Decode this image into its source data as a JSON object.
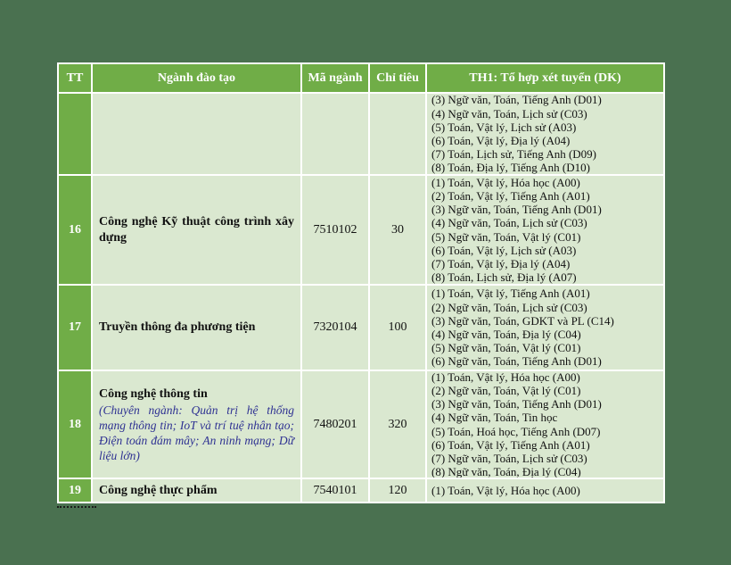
{
  "table": {
    "headers": {
      "tt": "TT",
      "major": "Ngành đào tạo",
      "code": "Mã ngành",
      "quota": "Chỉ tiêu",
      "combos": "TH1: Tổ hợp xét tuyển (DK)"
    },
    "rows": [
      {
        "tt": "",
        "name": "",
        "subtitle": "",
        "code": "",
        "quota": "",
        "combinations": [
          "(3) Ngữ văn, Toán, Tiếng Anh (D01)",
          "(4) Ngữ văn, Toán, Lịch sử (C03)",
          "(5) Toán, Vật lý, Lịch sử (A03)",
          "(6) Toán, Vật lý, Địa lý (A04)",
          "(7) Toán, Lịch sử, Tiếng Anh (D09)",
          "(8) Toán, Địa lý, Tiếng Anh (D10)"
        ]
      },
      {
        "tt": "16",
        "name": "Công nghệ Kỹ thuật công trình xây dựng",
        "subtitle": "",
        "code": "7510102",
        "quota": "30",
        "combinations": [
          "(1) Toán, Vật lý, Hóa học (A00)",
          "(2) Toán, Vật lý, Tiếng Anh (A01)",
          "(3) Ngữ văn, Toán, Tiếng Anh (D01)",
          "(4) Ngữ văn, Toán, Lịch sử (C03)",
          "(5) Ngữ văn, Toán, Vật lý (C01)",
          "(6) Toán, Vật lý, Lịch sử (A03)",
          "(7) Toán, Vật lý, Địa lý (A04)",
          "(8) Toán, Lịch sử, Địa lý (A07)"
        ]
      },
      {
        "tt": "17",
        "name": "Truyền thông đa phương tiện",
        "subtitle": "",
        "code": "7320104",
        "quota": "100",
        "combinations": [
          "(1) Toán, Vật lý, Tiếng Anh (A01)",
          "(2) Ngữ văn, Toán, Lịch sử (C03)",
          "(3) Ngữ văn, Toán, GDKT và PL (C14)",
          "(4) Ngữ văn, Toán, Địa lý (C04)",
          "(5) Ngữ văn, Toán, Vật lý (C01)",
          "(6) Ngữ văn, Toán, Tiếng Anh (D01)"
        ]
      },
      {
        "tt": "18",
        "name": "Công nghệ thông tin",
        "subtitle": "(Chuyên ngành: Quản trị hệ thống mạng thông tin; IoT và trí tuệ nhân tạo; Điện toán đám mây; An ninh mạng; Dữ liệu lớn)",
        "code": "7480201",
        "quota": "320",
        "combinations": [
          "(1) Toán, Vật lý, Hóa học (A00)",
          "(2) Ngữ văn, Toán, Vật lý (C01)",
          "(3) Ngữ văn, Toán, Tiếng Anh (D01)",
          "(4) Ngữ văn, Toán, Tin học",
          "(5) Toán, Hoá học, Tiếng Anh (D07)",
          "(6) Toán, Vật lý, Tiếng Anh (A01)",
          "(7) Ngữ văn, Toán, Lịch sử (C03)",
          "(8) Ngữ văn, Toán, Địa lý (C04)"
        ]
      },
      {
        "tt": "19",
        "name": "Công nghệ thực phẩm",
        "subtitle": "",
        "code": "7540101",
        "quota": "120",
        "combinations": [
          "(1) Toán, Vật lý, Hóa học (A00)"
        ]
      }
    ],
    "colors": {
      "page_background": "#4A7150",
      "header_green": "#70AD47",
      "cell_light_green": "#DAE8D0",
      "border_white": "#FFFFFF",
      "subtitle_blue": "#2E3192"
    }
  }
}
